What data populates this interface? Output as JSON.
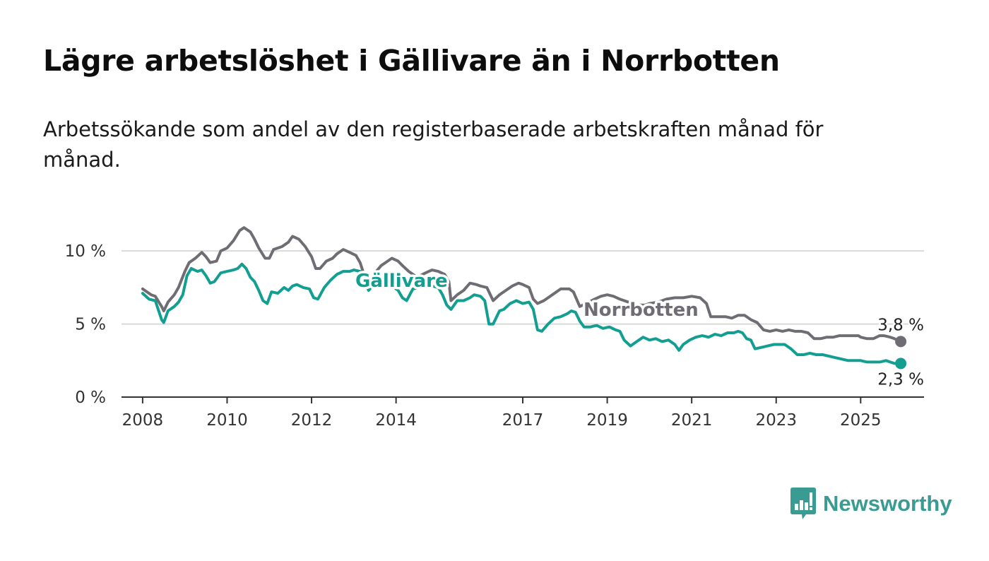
{
  "title": "Lägre arbetslöshet i Gällivare än i Norrbotten",
  "subtitle": "Arbetssökande som andel av den registerbaserade arbetskraften månad för månad.",
  "brand": {
    "name": "Newsworthy",
    "icon": "newsworthy-logo-icon",
    "color": "#3a9b92"
  },
  "colors": {
    "gallivare": "#129e91",
    "norrbotten": "#6f6d73",
    "grid": "#d9d9d9",
    "axis": "#333333"
  },
  "chart_data": {
    "type": "line",
    "title": "Lägre arbetslöshet i Gällivare än i Norrbotten",
    "xlabel": "",
    "ylabel": "",
    "xlim": [
      2007.5,
      2026.5
    ],
    "ylim": [
      0,
      11.7
    ],
    "x_ticks": [
      2008,
      2010,
      2012,
      2014,
      2017,
      2019,
      2021,
      2023,
      2025
    ],
    "y_ticks": [
      0,
      5,
      10
    ],
    "y_tick_labels": [
      "0 %",
      "5 %",
      "10 %"
    ],
    "grid": true,
    "legend": "none (direct labels on lines)",
    "series": [
      {
        "name": "Norrbotten",
        "color": "#6f6d73",
        "end_label": "3,8 %",
        "points": [
          [
            2008.0,
            7.4
          ],
          [
            2008.2,
            7.0
          ],
          [
            2008.3,
            6.9
          ],
          [
            2008.45,
            6.2
          ],
          [
            2008.5,
            5.9
          ],
          [
            2008.6,
            6.5
          ],
          [
            2008.75,
            7.0
          ],
          [
            2008.85,
            7.5
          ],
          [
            2009.0,
            8.6
          ],
          [
            2009.1,
            9.2
          ],
          [
            2009.25,
            9.5
          ],
          [
            2009.4,
            9.9
          ],
          [
            2009.5,
            9.6
          ],
          [
            2009.6,
            9.2
          ],
          [
            2009.75,
            9.3
          ],
          [
            2009.85,
            10.0
          ],
          [
            2010.0,
            10.2
          ],
          [
            2010.15,
            10.7
          ],
          [
            2010.3,
            11.4
          ],
          [
            2010.4,
            11.6
          ],
          [
            2010.55,
            11.3
          ],
          [
            2010.65,
            10.8
          ],
          [
            2010.75,
            10.2
          ],
          [
            2010.9,
            9.5
          ],
          [
            2011.0,
            9.5
          ],
          [
            2011.1,
            10.1
          ],
          [
            2011.3,
            10.3
          ],
          [
            2011.45,
            10.6
          ],
          [
            2011.55,
            11.0
          ],
          [
            2011.7,
            10.8
          ],
          [
            2011.85,
            10.3
          ],
          [
            2012.0,
            9.6
          ],
          [
            2012.1,
            8.8
          ],
          [
            2012.2,
            8.8
          ],
          [
            2012.35,
            9.3
          ],
          [
            2012.5,
            9.5
          ],
          [
            2012.6,
            9.8
          ],
          [
            2012.75,
            10.1
          ],
          [
            2012.9,
            9.9
          ],
          [
            2013.05,
            9.7
          ],
          [
            2013.15,
            9.2
          ],
          [
            2013.25,
            8.3
          ],
          [
            2013.4,
            8.0
          ],
          [
            2013.5,
            8.5
          ],
          [
            2013.65,
            9.0
          ],
          [
            2013.8,
            9.3
          ],
          [
            2013.9,
            9.5
          ],
          [
            2014.05,
            9.3
          ],
          [
            2014.15,
            9.0
          ],
          [
            2014.3,
            8.6
          ],
          [
            2014.5,
            8.2
          ],
          [
            2014.7,
            8.5
          ],
          [
            2014.85,
            8.7
          ],
          [
            2015.0,
            8.6
          ],
          [
            2015.15,
            8.4
          ],
          [
            2015.25,
            7.9
          ],
          [
            2015.3,
            6.6
          ],
          [
            2015.45,
            7.0
          ],
          [
            2015.6,
            7.3
          ],
          [
            2015.75,
            7.8
          ],
          [
            2015.9,
            7.7
          ],
          [
            2016.0,
            7.6
          ],
          [
            2016.15,
            7.5
          ],
          [
            2016.3,
            6.6
          ],
          [
            2016.45,
            7.0
          ],
          [
            2016.6,
            7.3
          ],
          [
            2016.75,
            7.6
          ],
          [
            2016.9,
            7.8
          ],
          [
            2017.0,
            7.7
          ],
          [
            2017.15,
            7.5
          ],
          [
            2017.25,
            6.7
          ],
          [
            2017.35,
            6.4
          ],
          [
            2017.5,
            6.6
          ],
          [
            2017.7,
            7.0
          ],
          [
            2017.9,
            7.4
          ],
          [
            2018.1,
            7.4
          ],
          [
            2018.2,
            7.2
          ],
          [
            2018.35,
            6.2
          ],
          [
            2018.5,
            6.4
          ],
          [
            2018.7,
            6.7
          ],
          [
            2018.85,
            6.9
          ],
          [
            2019.0,
            7.0
          ],
          [
            2019.15,
            6.9
          ],
          [
            2019.3,
            6.7
          ],
          [
            2019.5,
            6.5
          ],
          [
            2019.7,
            6.3
          ],
          [
            2019.9,
            6.3
          ],
          [
            2020.0,
            6.4
          ],
          [
            2020.2,
            6.5
          ],
          [
            2020.4,
            6.7
          ],
          [
            2020.6,
            6.8
          ],
          [
            2020.8,
            6.8
          ],
          [
            2021.0,
            6.9
          ],
          [
            2021.2,
            6.8
          ],
          [
            2021.35,
            6.4
          ],
          [
            2021.45,
            5.5
          ],
          [
            2021.6,
            5.5
          ],
          [
            2021.8,
            5.5
          ],
          [
            2021.95,
            5.4
          ],
          [
            2022.1,
            5.6
          ],
          [
            2022.25,
            5.6
          ],
          [
            2022.4,
            5.3
          ],
          [
            2022.55,
            5.1
          ],
          [
            2022.7,
            4.6
          ],
          [
            2022.85,
            4.5
          ],
          [
            2023.0,
            4.6
          ],
          [
            2023.15,
            4.5
          ],
          [
            2023.3,
            4.6
          ],
          [
            2023.45,
            4.5
          ],
          [
            2023.6,
            4.5
          ],
          [
            2023.75,
            4.4
          ],
          [
            2023.9,
            4.0
          ],
          [
            2024.05,
            4.0
          ],
          [
            2024.2,
            4.1
          ],
          [
            2024.35,
            4.1
          ],
          [
            2024.5,
            4.2
          ],
          [
            2024.65,
            4.2
          ],
          [
            2024.8,
            4.2
          ],
          [
            2024.95,
            4.2
          ],
          [
            2025.0,
            4.1
          ],
          [
            2025.15,
            4.0
          ],
          [
            2025.3,
            4.0
          ],
          [
            2025.45,
            4.2
          ],
          [
            2025.55,
            4.2
          ],
          [
            2025.7,
            4.1
          ],
          [
            2025.8,
            4.0
          ],
          [
            2025.95,
            3.8
          ]
        ]
      },
      {
        "name": "Gällivare",
        "color": "#129e91",
        "end_label": "2,3 %",
        "points": [
          [
            2008.0,
            7.1
          ],
          [
            2008.15,
            6.7
          ],
          [
            2008.3,
            6.6
          ],
          [
            2008.45,
            5.3
          ],
          [
            2008.5,
            5.1
          ],
          [
            2008.6,
            5.9
          ],
          [
            2008.75,
            6.2
          ],
          [
            2008.85,
            6.5
          ],
          [
            2008.95,
            7.0
          ],
          [
            2009.05,
            8.3
          ],
          [
            2009.15,
            8.8
          ],
          [
            2009.3,
            8.6
          ],
          [
            2009.4,
            8.7
          ],
          [
            2009.5,
            8.3
          ],
          [
            2009.6,
            7.8
          ],
          [
            2009.7,
            7.9
          ],
          [
            2009.85,
            8.5
          ],
          [
            2010.0,
            8.6
          ],
          [
            2010.15,
            8.7
          ],
          [
            2010.25,
            8.8
          ],
          [
            2010.35,
            9.1
          ],
          [
            2010.45,
            8.8
          ],
          [
            2010.55,
            8.2
          ],
          [
            2010.65,
            7.9
          ],
          [
            2010.75,
            7.3
          ],
          [
            2010.85,
            6.6
          ],
          [
            2010.95,
            6.4
          ],
          [
            2011.05,
            7.2
          ],
          [
            2011.2,
            7.1
          ],
          [
            2011.35,
            7.5
          ],
          [
            2011.45,
            7.3
          ],
          [
            2011.55,
            7.6
          ],
          [
            2011.65,
            7.7
          ],
          [
            2011.8,
            7.5
          ],
          [
            2011.95,
            7.4
          ],
          [
            2012.05,
            6.8
          ],
          [
            2012.15,
            6.7
          ],
          [
            2012.3,
            7.5
          ],
          [
            2012.45,
            8.0
          ],
          [
            2012.6,
            8.4
          ],
          [
            2012.75,
            8.6
          ],
          [
            2012.9,
            8.6
          ],
          [
            2013.0,
            8.7
          ],
          [
            2013.15,
            8.6
          ],
          [
            2013.25,
            7.9
          ],
          [
            2013.35,
            7.3
          ],
          [
            2013.5,
            7.8
          ],
          [
            2013.65,
            8.0
          ],
          [
            2013.8,
            7.8
          ],
          [
            2013.95,
            7.5
          ],
          [
            2014.05,
            7.3
          ],
          [
            2014.15,
            6.8
          ],
          [
            2014.25,
            6.6
          ],
          [
            2014.4,
            7.4
          ],
          [
            2014.55,
            7.5
          ],
          [
            2014.7,
            7.5
          ],
          [
            2014.85,
            7.6
          ],
          [
            2015.0,
            7.5
          ],
          [
            2015.1,
            7.0
          ],
          [
            2015.2,
            6.3
          ],
          [
            2015.3,
            6.0
          ],
          [
            2015.45,
            6.6
          ],
          [
            2015.6,
            6.6
          ],
          [
            2015.75,
            6.8
          ],
          [
            2015.85,
            7.0
          ],
          [
            2016.0,
            6.9
          ],
          [
            2016.1,
            6.6
          ],
          [
            2016.2,
            5.0
          ],
          [
            2016.3,
            5.0
          ],
          [
            2016.45,
            5.9
          ],
          [
            2016.55,
            6.0
          ],
          [
            2016.7,
            6.4
          ],
          [
            2016.85,
            6.6
          ],
          [
            2017.0,
            6.4
          ],
          [
            2017.15,
            6.5
          ],
          [
            2017.25,
            6.0
          ],
          [
            2017.35,
            4.6
          ],
          [
            2017.45,
            4.5
          ],
          [
            2017.6,
            5.0
          ],
          [
            2017.75,
            5.4
          ],
          [
            2017.9,
            5.5
          ],
          [
            2018.05,
            5.7
          ],
          [
            2018.15,
            5.9
          ],
          [
            2018.25,
            5.8
          ],
          [
            2018.35,
            5.2
          ],
          [
            2018.45,
            4.8
          ],
          [
            2018.6,
            4.8
          ],
          [
            2018.75,
            4.9
          ],
          [
            2018.9,
            4.7
          ],
          [
            2019.05,
            4.8
          ],
          [
            2019.2,
            4.6
          ],
          [
            2019.3,
            4.5
          ],
          [
            2019.4,
            3.9
          ],
          [
            2019.55,
            3.5
          ],
          [
            2019.7,
            3.8
          ],
          [
            2019.85,
            4.1
          ],
          [
            2020.0,
            3.9
          ],
          [
            2020.15,
            4.0
          ],
          [
            2020.3,
            3.8
          ],
          [
            2020.45,
            3.9
          ],
          [
            2020.6,
            3.6
          ],
          [
            2020.7,
            3.2
          ],
          [
            2020.8,
            3.6
          ],
          [
            2020.95,
            3.9
          ],
          [
            2021.1,
            4.1
          ],
          [
            2021.25,
            4.2
          ],
          [
            2021.4,
            4.1
          ],
          [
            2021.55,
            4.3
          ],
          [
            2021.7,
            4.2
          ],
          [
            2021.85,
            4.4
          ],
          [
            2022.0,
            4.4
          ],
          [
            2022.1,
            4.5
          ],
          [
            2022.2,
            4.4
          ],
          [
            2022.3,
            4.0
          ],
          [
            2022.4,
            3.9
          ],
          [
            2022.5,
            3.3
          ],
          [
            2022.65,
            3.4
          ],
          [
            2022.8,
            3.5
          ],
          [
            2022.95,
            3.6
          ],
          [
            2023.05,
            3.6
          ],
          [
            2023.2,
            3.6
          ],
          [
            2023.35,
            3.3
          ],
          [
            2023.5,
            2.9
          ],
          [
            2023.65,
            2.9
          ],
          [
            2023.8,
            3.0
          ],
          [
            2023.95,
            2.9
          ],
          [
            2024.1,
            2.9
          ],
          [
            2024.25,
            2.8
          ],
          [
            2024.4,
            2.7
          ],
          [
            2024.55,
            2.6
          ],
          [
            2024.7,
            2.5
          ],
          [
            2024.85,
            2.5
          ],
          [
            2025.0,
            2.5
          ],
          [
            2025.15,
            2.4
          ],
          [
            2025.3,
            2.4
          ],
          [
            2025.45,
            2.4
          ],
          [
            2025.6,
            2.5
          ],
          [
            2025.7,
            2.4
          ],
          [
            2025.8,
            2.3
          ],
          [
            2025.95,
            2.3
          ]
        ]
      }
    ]
  }
}
